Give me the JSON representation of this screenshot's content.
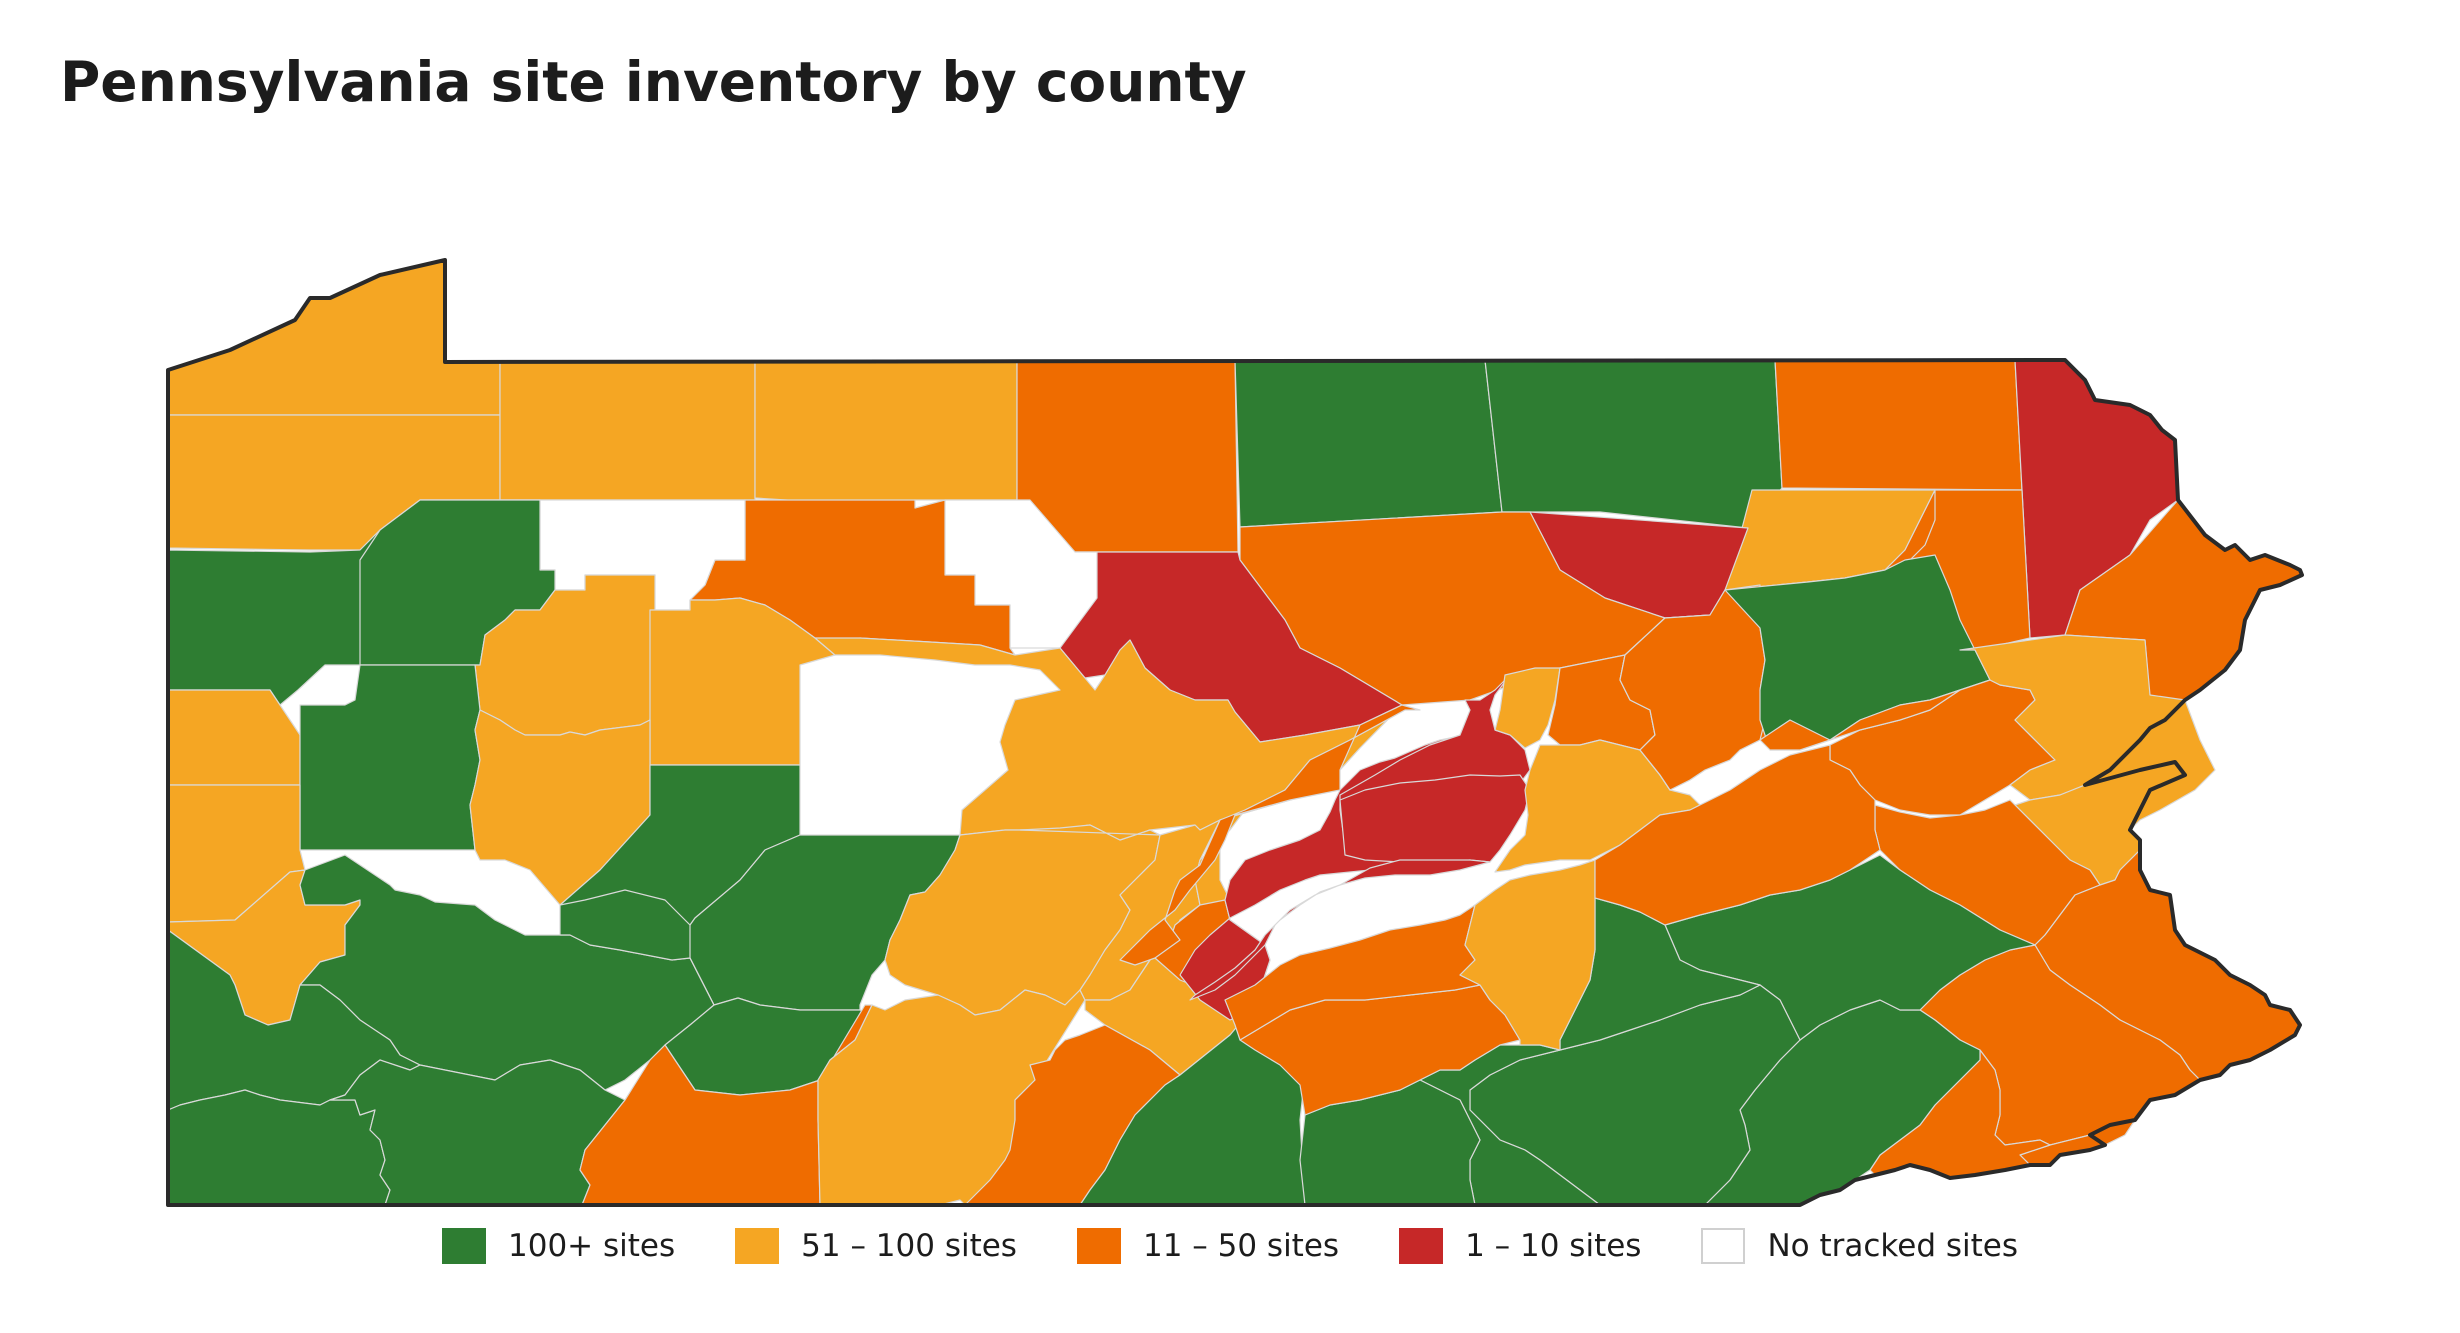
{
  "title": "Pennsylvania site inventory by county",
  "palette": {
    "c100": "#2e7d32",
    "c51": "#f5a623",
    "c11": "#ef6c00",
    "c1": "#c62828",
    "c0": "#ffffff",
    "border": "#d9d9d9",
    "outline": "#2a2a2a"
  },
  "legend": [
    {
      "label": "100+ sites",
      "class": "c100"
    },
    {
      "label": "51 – 100 sites",
      "class": "c51"
    },
    {
      "label": "11 – 50 sites",
      "class": "c11"
    },
    {
      "label": "1 – 10 sites",
      "class": "c1"
    },
    {
      "label": "No tracked sites",
      "class": "c0"
    }
  ]
}
